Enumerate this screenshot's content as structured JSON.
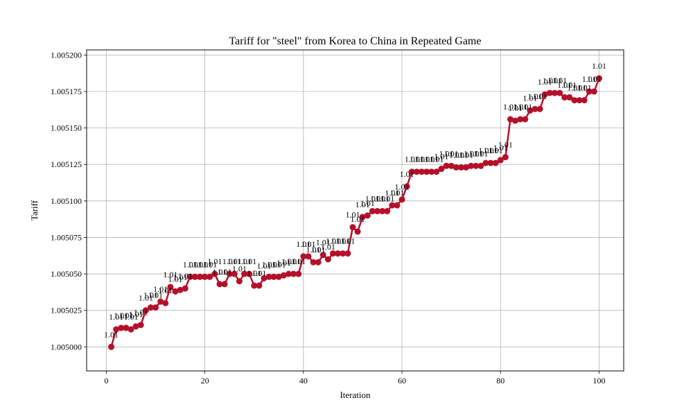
{
  "chart_data": {
    "type": "line",
    "title": "Tariff for \"steel\" from Korea to China in Repeated Game",
    "xlabel": "Iteration",
    "ylabel": "Tariff",
    "xlim": [
      -4,
      105
    ],
    "ylim": [
      1.0049835,
      1.0052035
    ],
    "x_ticks": [
      0,
      20,
      40,
      60,
      80,
      100
    ],
    "x_tick_labels": [
      "0",
      "20",
      "40",
      "60",
      "80",
      "100"
    ],
    "y_ticks": [
      1.005,
      1.005025,
      1.00505,
      1.005075,
      1.0051,
      1.005125,
      1.00515,
      1.005175,
      1.0052
    ],
    "y_tick_labels": [
      "1.005000",
      "1.005025",
      "1.005050",
      "1.005075",
      "1.005100",
      "1.005125",
      "1.005150",
      "1.005175",
      "1.005200"
    ],
    "grid": true,
    "line_color": "#b5102a",
    "marker": "circle",
    "data_label_text": "1.01",
    "series": [
      {
        "x": [
          1,
          2,
          3,
          4,
          5,
          6,
          7,
          8,
          9,
          10,
          11,
          12,
          13,
          14,
          15,
          16,
          17,
          18,
          19,
          20,
          21,
          22,
          23,
          24,
          25,
          26,
          27,
          28,
          29,
          30,
          31,
          32,
          33,
          34,
          35,
          36,
          37,
          38,
          39,
          40,
          41,
          42,
          43,
          44,
          45,
          46,
          47,
          48,
          49,
          50,
          51,
          52,
          53,
          54,
          55,
          56,
          57,
          58,
          59,
          60,
          61,
          62,
          63,
          64,
          65,
          66,
          67,
          68,
          69,
          70,
          71,
          72,
          73,
          74,
          75,
          76,
          77,
          78,
          79,
          80,
          81,
          82,
          83,
          84,
          85,
          86,
          87,
          88,
          89,
          90,
          91,
          92,
          93,
          94,
          95,
          96,
          97,
          98,
          99,
          100
        ],
        "values": [
          1.005,
          1.005012,
          1.005013,
          1.005013,
          1.005012,
          1.005014,
          1.005015,
          1.005025,
          1.005027,
          1.005027,
          1.005031,
          1.00503,
          1.005041,
          1.005038,
          1.005039,
          1.00504,
          1.005048,
          1.005048,
          1.005048,
          1.005048,
          1.005048,
          1.00505,
          1.005043,
          1.005043,
          1.00505,
          1.00505,
          1.005045,
          1.00505,
          1.00505,
          1.005042,
          1.005042,
          1.005047,
          1.005048,
          1.005048,
          1.005048,
          1.005049,
          1.00505,
          1.00505,
          1.00505,
          1.005062,
          1.005062,
          1.005058,
          1.005058,
          1.005063,
          1.00506,
          1.005064,
          1.005064,
          1.005064,
          1.005064,
          1.005082,
          1.005079,
          1.005089,
          1.00509,
          1.005093,
          1.005093,
          1.005093,
          1.005093,
          1.005097,
          1.005097,
          1.005101,
          1.00511,
          1.00512,
          1.00512,
          1.00512,
          1.00512,
          1.00512,
          1.00512,
          1.005122,
          1.005124,
          1.005124,
          1.005123,
          1.005123,
          1.005123,
          1.005124,
          1.005124,
          1.005124,
          1.005126,
          1.005126,
          1.005126,
          1.005128,
          1.00513,
          1.005156,
          1.005155,
          1.005156,
          1.005156,
          1.005162,
          1.005163,
          1.005163,
          1.005173,
          1.005174,
          1.005174,
          1.005174,
          1.005171,
          1.005171,
          1.005169,
          1.005169,
          1.005169,
          1.005175,
          1.005175,
          1.005184
        ]
      }
    ]
  }
}
